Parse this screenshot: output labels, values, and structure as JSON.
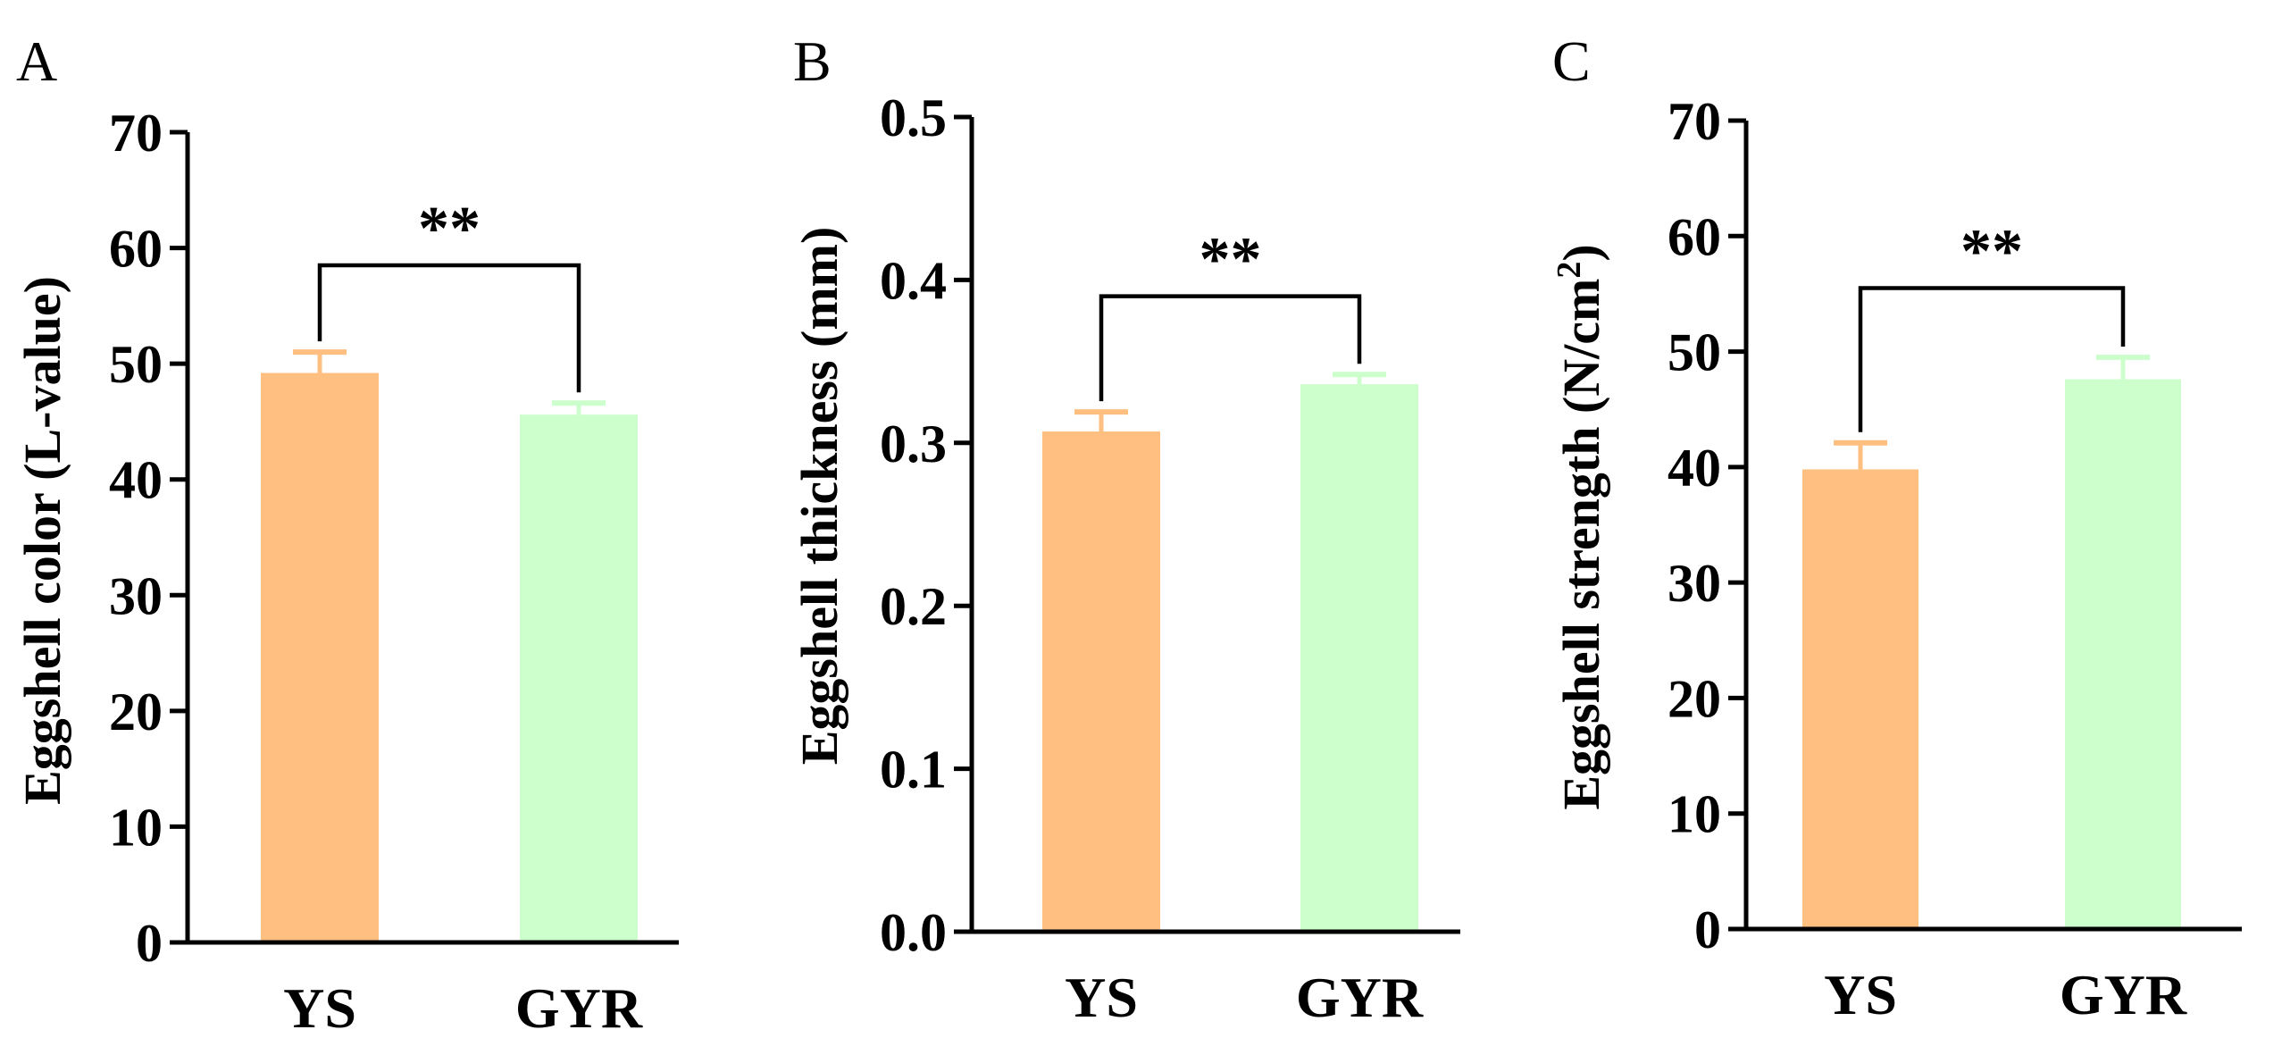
{
  "chart_data": [
    {
      "panel": "A",
      "type": "bar",
      "categories": [
        "YS",
        "GYR"
      ],
      "values": [
        49.2,
        45.6
      ],
      "errors": [
        1.8,
        1.0
      ],
      "colors": [
        "#FFBF80",
        "#CCFFCC"
      ],
      "error_colors": [
        "#FFBF80",
        "#CCFFCC"
      ],
      "ylabel": "Eggshell color (L-value)",
      "ylabel_sup": "",
      "ylabel_end": "",
      "ylim": [
        0,
        70
      ],
      "yticks": [
        0,
        10,
        20,
        30,
        40,
        50,
        60,
        70
      ],
      "tick_labels": [
        "0",
        "10",
        "20",
        "30",
        "40",
        "50",
        "60",
        "70"
      ],
      "significance": "**",
      "bracket_y": 58.5
    },
    {
      "panel": "B",
      "type": "bar",
      "categories": [
        "YS",
        "GYR"
      ],
      "values": [
        0.307,
        0.336
      ],
      "errors": [
        0.012,
        0.006
      ],
      "colors": [
        "#FFBF80",
        "#CCFFCC"
      ],
      "error_colors": [
        "#FFBF80",
        "#CCFFCC"
      ],
      "ylabel": "Eggshell thickness (mm)",
      "ylabel_sup": "",
      "ylabel_end": "",
      "ylim": [
        0,
        0.5
      ],
      "yticks": [
        0,
        0.1,
        0.2,
        0.3,
        0.4,
        0.5
      ],
      "tick_labels": [
        "0.0",
        "0.1",
        "0.2",
        "0.3",
        "0.4",
        "0.5"
      ],
      "significance": "**",
      "bracket_y": 0.39
    },
    {
      "panel": "C",
      "type": "bar",
      "categories": [
        "YS",
        "GYR"
      ],
      "values": [
        39.8,
        47.6
      ],
      "errors": [
        2.3,
        1.9
      ],
      "colors": [
        "#FFBF80",
        "#CCFFCC"
      ],
      "error_colors": [
        "#FFBF80",
        "#CCFFCC"
      ],
      "ylabel": "Eggshell strength (N/cm",
      "ylabel_sup": "2",
      "ylabel_end": ")",
      "ylim": [
        0,
        70
      ],
      "yticks": [
        0,
        10,
        20,
        30,
        40,
        50,
        60,
        70
      ],
      "tick_labels": [
        "0",
        "10",
        "20",
        "30",
        "40",
        "50",
        "60",
        "70"
      ],
      "significance": "**",
      "bracket_y": 55.5
    }
  ]
}
